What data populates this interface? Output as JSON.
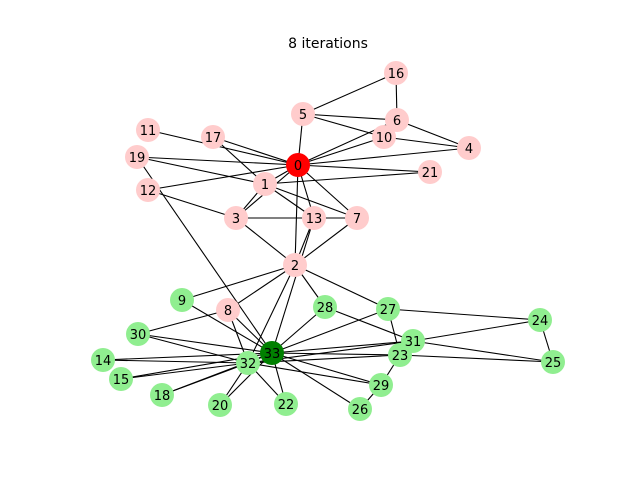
{
  "title": "8 iterations",
  "colors": {
    "node_pink": "#ffcccc",
    "node_red": "#ff0000",
    "node_lightgreen": "#90ee90",
    "node_darkgreen": "#008000",
    "edge": "#000000"
  },
  "nodes": [
    {
      "id": "0",
      "color": "red"
    },
    {
      "id": "1",
      "color": "pink"
    },
    {
      "id": "2",
      "color": "pink"
    },
    {
      "id": "3",
      "color": "pink"
    },
    {
      "id": "4",
      "color": "pink"
    },
    {
      "id": "5",
      "color": "pink"
    },
    {
      "id": "6",
      "color": "pink"
    },
    {
      "id": "7",
      "color": "pink"
    },
    {
      "id": "8",
      "color": "pink"
    },
    {
      "id": "9",
      "color": "lightgreen"
    },
    {
      "id": "10",
      "color": "pink"
    },
    {
      "id": "11",
      "color": "pink"
    },
    {
      "id": "12",
      "color": "pink"
    },
    {
      "id": "13",
      "color": "pink"
    },
    {
      "id": "14",
      "color": "lightgreen"
    },
    {
      "id": "15",
      "color": "lightgreen"
    },
    {
      "id": "16",
      "color": "pink"
    },
    {
      "id": "17",
      "color": "pink"
    },
    {
      "id": "18",
      "color": "lightgreen"
    },
    {
      "id": "19",
      "color": "pink"
    },
    {
      "id": "20",
      "color": "lightgreen"
    },
    {
      "id": "21",
      "color": "pink"
    },
    {
      "id": "22",
      "color": "lightgreen"
    },
    {
      "id": "23",
      "color": "lightgreen"
    },
    {
      "id": "24",
      "color": "lightgreen"
    },
    {
      "id": "25",
      "color": "lightgreen"
    },
    {
      "id": "26",
      "color": "lightgreen"
    },
    {
      "id": "27",
      "color": "lightgreen"
    },
    {
      "id": "28",
      "color": "lightgreen"
    },
    {
      "id": "29",
      "color": "lightgreen"
    },
    {
      "id": "30",
      "color": "lightgreen"
    },
    {
      "id": "31",
      "color": "lightgreen"
    },
    {
      "id": "32",
      "color": "lightgreen"
    },
    {
      "id": "33",
      "color": "darkgreen"
    }
  ],
  "edges": [
    [
      "0",
      "1"
    ],
    [
      "0",
      "2"
    ],
    [
      "0",
      "3"
    ],
    [
      "0",
      "4"
    ],
    [
      "0",
      "5"
    ],
    [
      "0",
      "6"
    ],
    [
      "0",
      "7"
    ],
    [
      "0",
      "10"
    ],
    [
      "0",
      "11"
    ],
    [
      "0",
      "12"
    ],
    [
      "0",
      "13"
    ],
    [
      "0",
      "17"
    ],
    [
      "0",
      "19"
    ],
    [
      "0",
      "21"
    ],
    [
      "1",
      "3"
    ],
    [
      "1",
      "7"
    ],
    [
      "1",
      "13"
    ],
    [
      "1",
      "17"
    ],
    [
      "1",
      "19"
    ],
    [
      "1",
      "21"
    ],
    [
      "2",
      "3"
    ],
    [
      "2",
      "7"
    ],
    [
      "2",
      "8"
    ],
    [
      "2",
      "9"
    ],
    [
      "2",
      "13"
    ],
    [
      "2",
      "27"
    ],
    [
      "2",
      "28"
    ],
    [
      "2",
      "32"
    ],
    [
      "3",
      "7"
    ],
    [
      "3",
      "12"
    ],
    [
      "3",
      "13"
    ],
    [
      "4",
      "6"
    ],
    [
      "4",
      "10"
    ],
    [
      "5",
      "6"
    ],
    [
      "5",
      "10"
    ],
    [
      "5",
      "16"
    ],
    [
      "6",
      "16"
    ],
    [
      "8",
      "30"
    ],
    [
      "8",
      "32"
    ],
    [
      "8",
      "33"
    ],
    [
      "9",
      "33"
    ],
    [
      "13",
      "33"
    ],
    [
      "14",
      "32"
    ],
    [
      "14",
      "33"
    ],
    [
      "15",
      "32"
    ],
    [
      "15",
      "33"
    ],
    [
      "18",
      "32"
    ],
    [
      "18",
      "33"
    ],
    [
      "19",
      "33"
    ],
    [
      "20",
      "32"
    ],
    [
      "20",
      "33"
    ],
    [
      "22",
      "32"
    ],
    [
      "22",
      "33"
    ],
    [
      "23",
      "25"
    ],
    [
      "23",
      "27"
    ],
    [
      "23",
      "29"
    ],
    [
      "23",
      "32"
    ],
    [
      "23",
      "33"
    ],
    [
      "24",
      "25"
    ],
    [
      "24",
      "27"
    ],
    [
      "24",
      "31"
    ],
    [
      "25",
      "31"
    ],
    [
      "26",
      "29"
    ],
    [
      "26",
      "33"
    ],
    [
      "27",
      "33"
    ],
    [
      "28",
      "31"
    ],
    [
      "28",
      "33"
    ],
    [
      "29",
      "32"
    ],
    [
      "29",
      "33"
    ],
    [
      "30",
      "32"
    ],
    [
      "30",
      "33"
    ],
    [
      "31",
      "32"
    ],
    [
      "31",
      "33"
    ],
    [
      "32",
      "33"
    ]
  ]
}
